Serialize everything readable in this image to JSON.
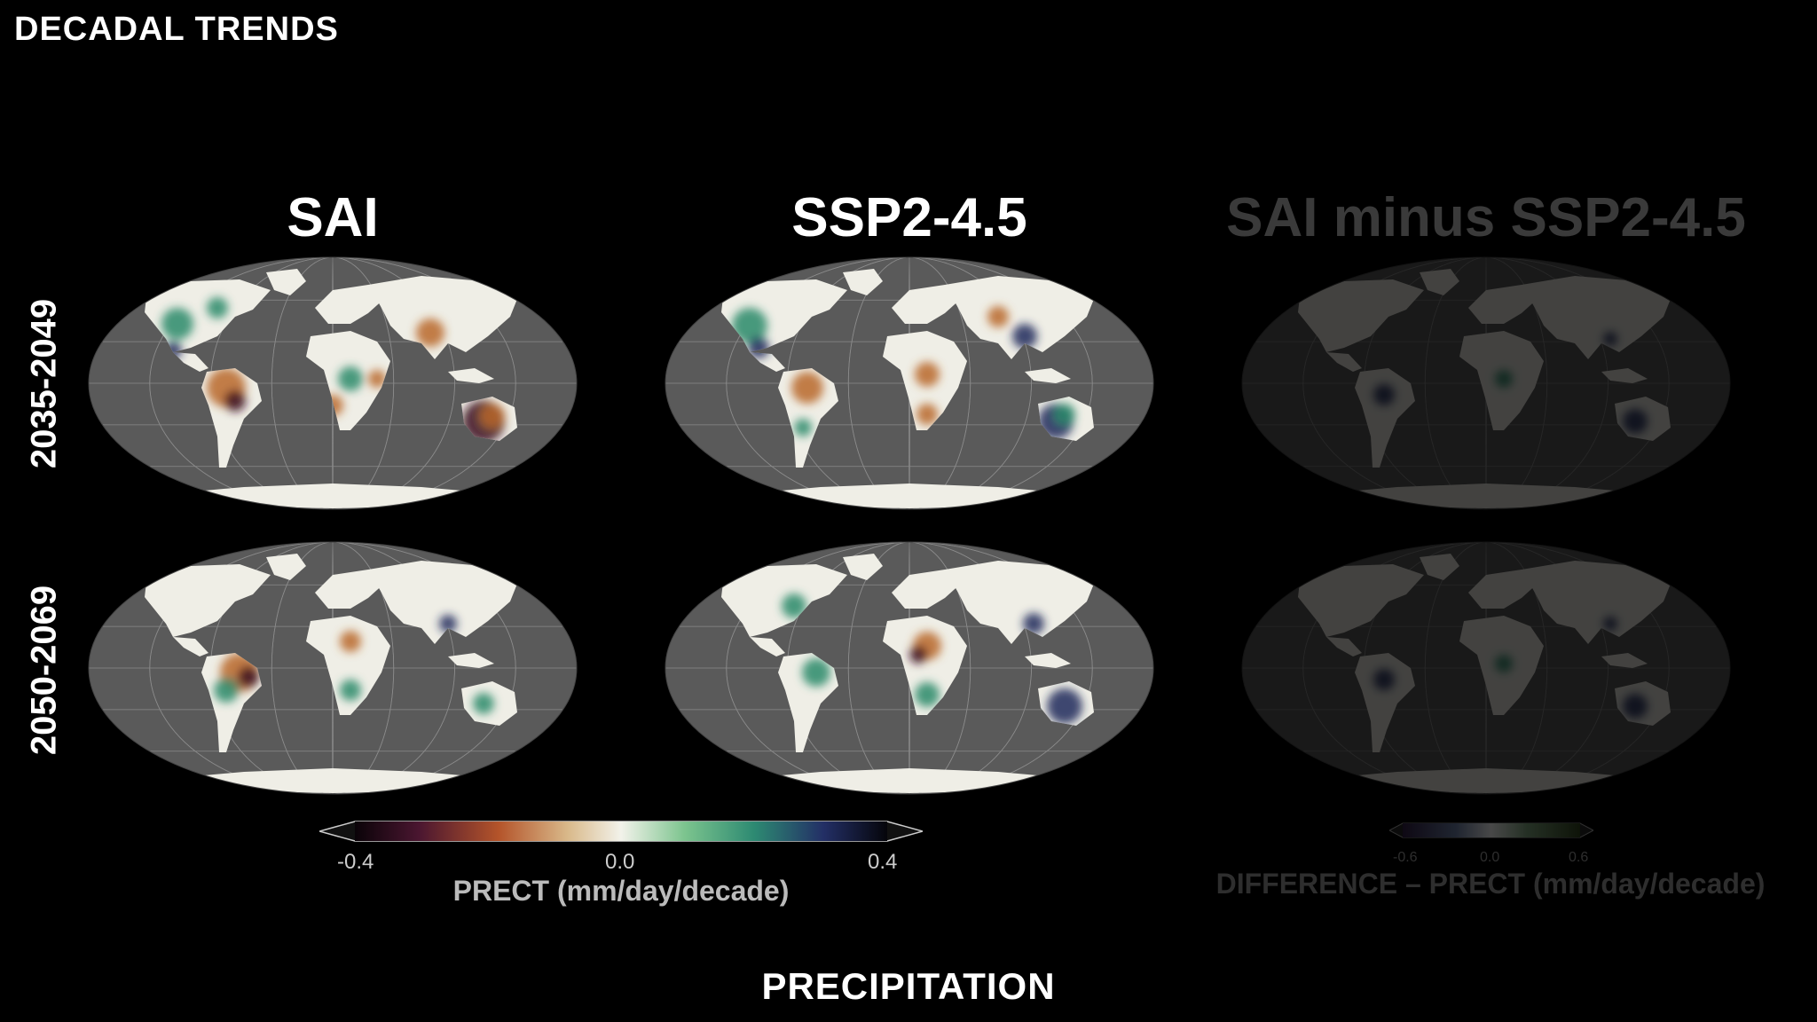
{
  "header": {
    "title": "DECADAL TRENDS"
  },
  "columns": [
    {
      "title": "SAI"
    },
    {
      "title": "SSP2-4.5"
    },
    {
      "title": "SAI minus SSP2-4.5"
    }
  ],
  "rows": [
    {
      "label": "2035-2049"
    },
    {
      "label": "2050-2069"
    }
  ],
  "colorbar_main": {
    "ticks": [
      "-0.4",
      "0.0",
      "0.4"
    ],
    "label": "PRECT (mm/day/decade)"
  },
  "colorbar_diff": {
    "ticks": [
      "-0.6",
      "0.0",
      "0.6"
    ],
    "label": "DIFFERENCE – PRECT (mm/day/decade)"
  },
  "footer": {
    "title": "PRECIPITATION"
  },
  "colors": {
    "ocean": "#5a5a5a",
    "land": "#efeee6",
    "wet": "#2c8a6a",
    "dry": "#b9672a",
    "very_wet": "#1d2a5c",
    "very_dry": "#3d0f1f"
  }
}
